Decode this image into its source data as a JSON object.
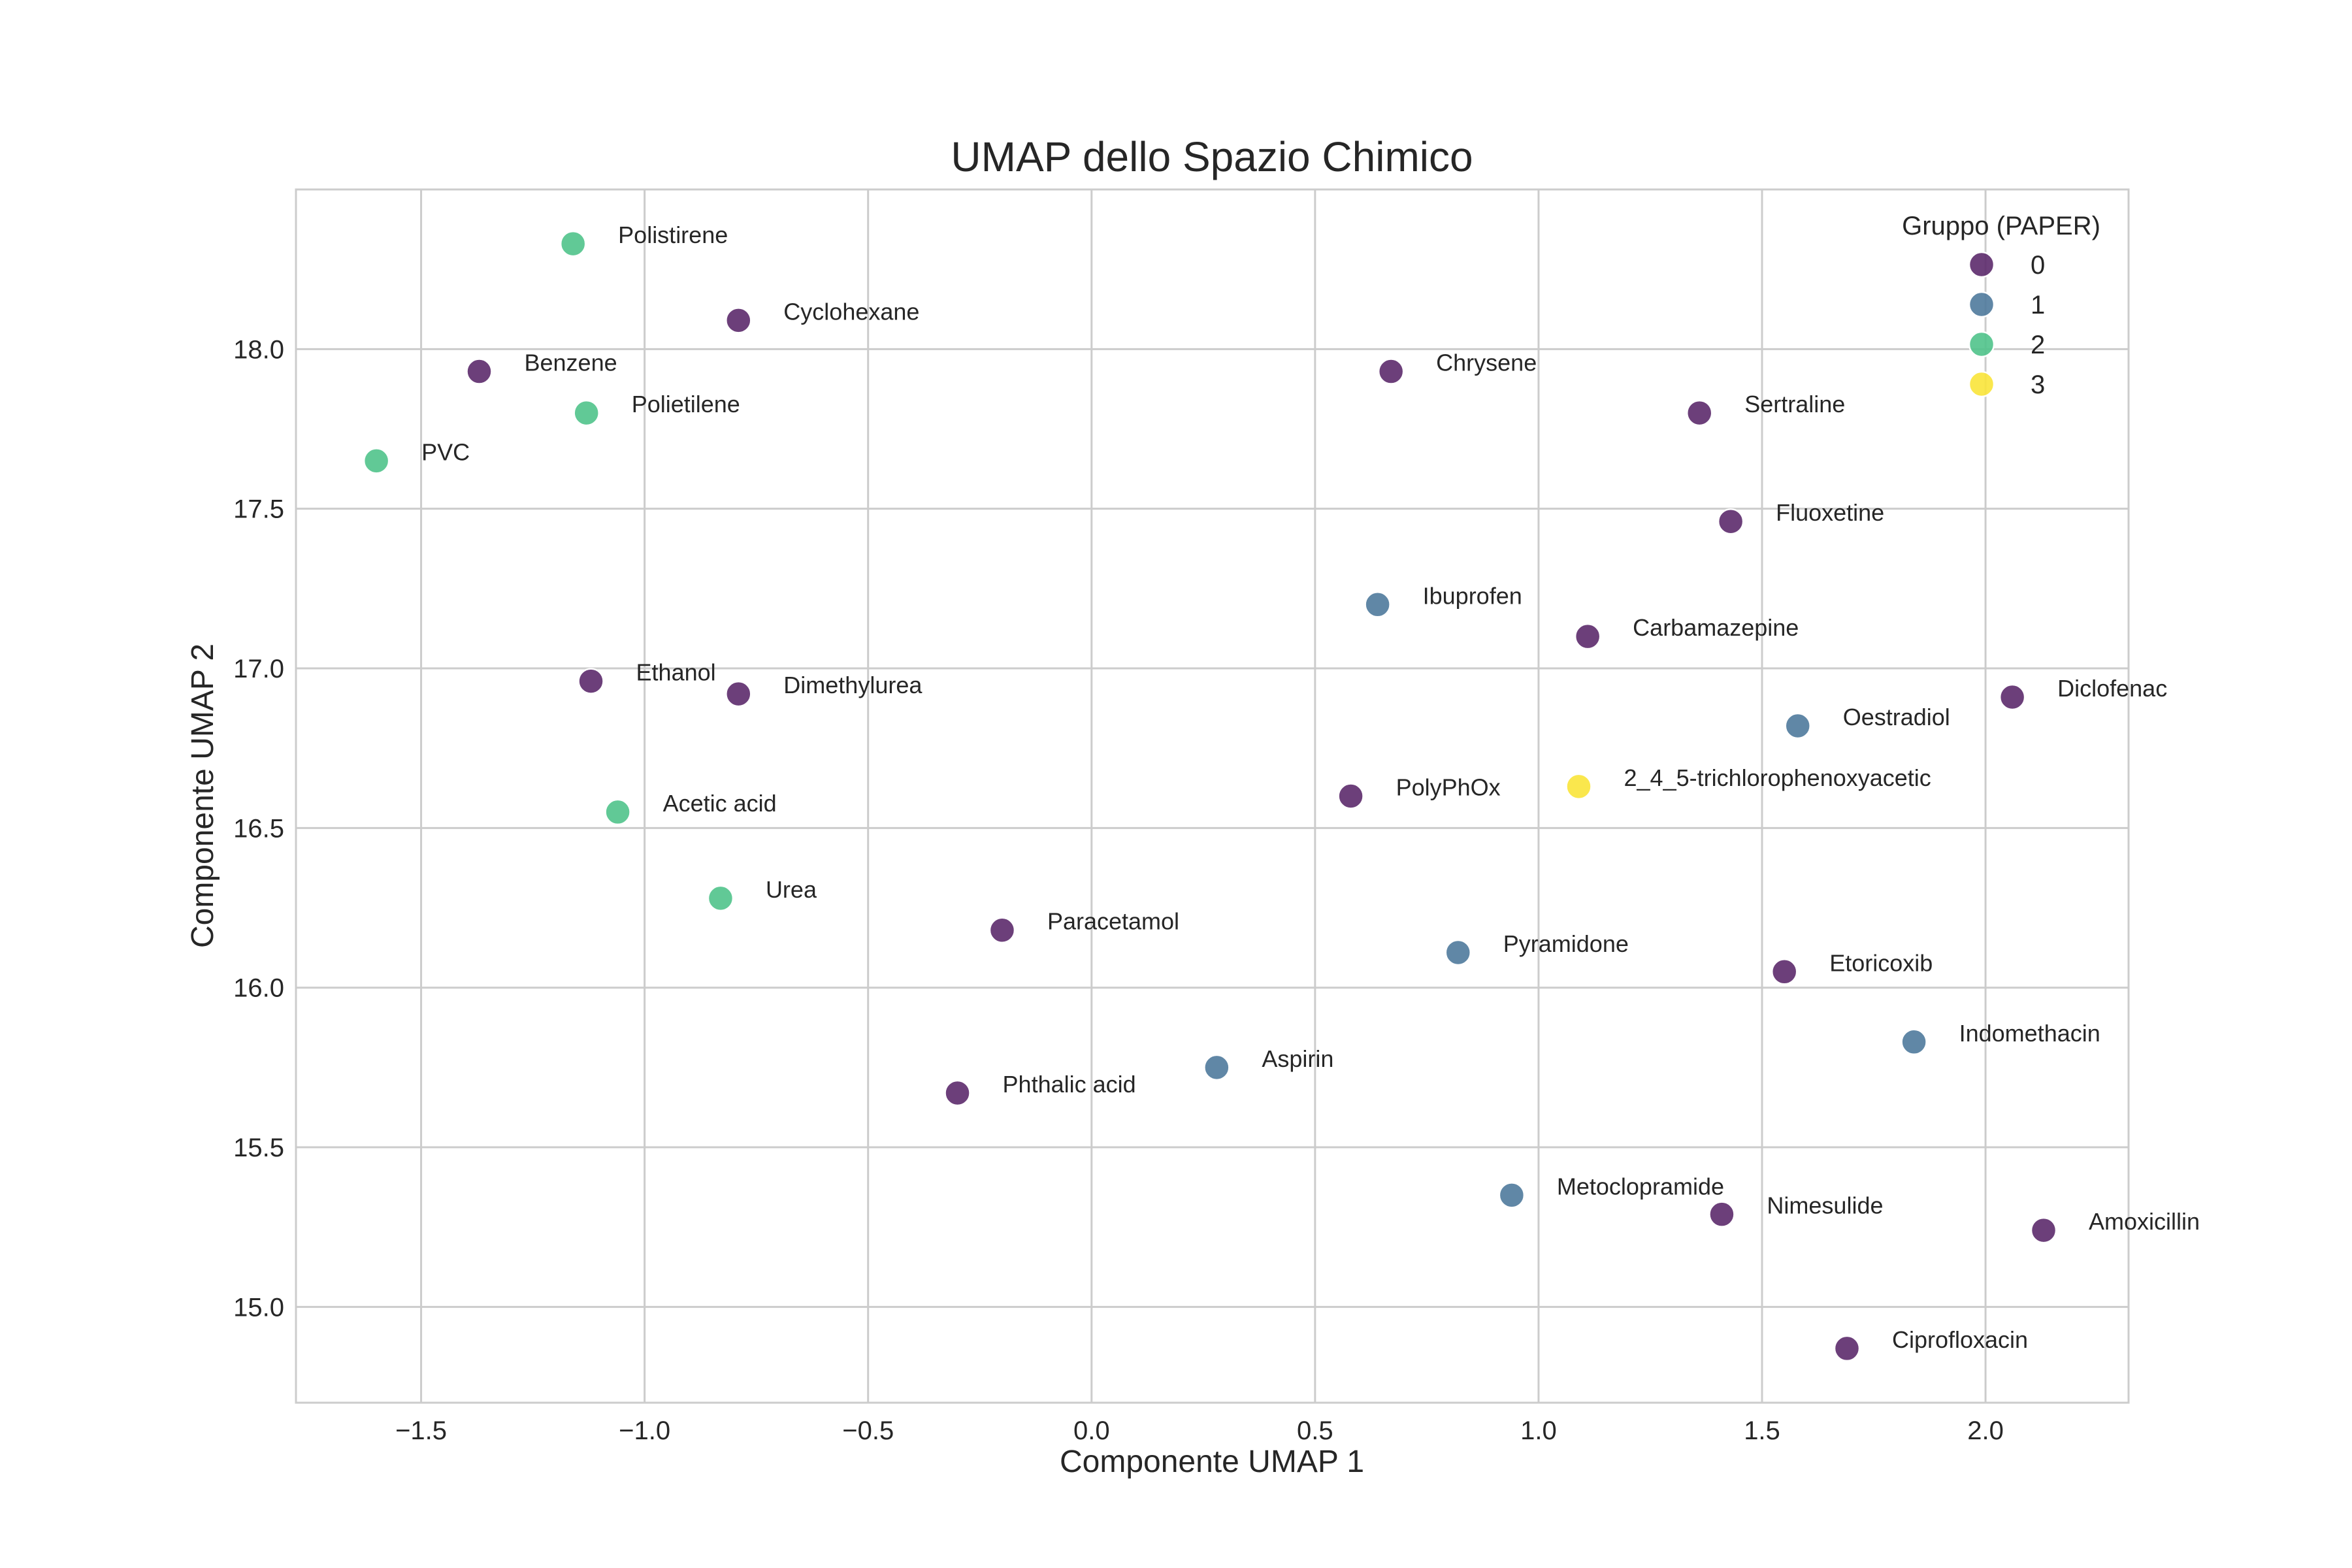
{
  "chart_data": {
    "type": "scatter",
    "title": "UMAP dello Spazio Chimico",
    "xlabel": "Componente UMAP 1",
    "ylabel": "Componente UMAP 2",
    "xlim": [
      -1.78,
      2.32
    ],
    "ylim": [
      14.7,
      18.5
    ],
    "xticks": [
      -1.5,
      -1.0,
      -0.5,
      0.0,
      0.5,
      1.0,
      1.5,
      2.0
    ],
    "xtick_labels": [
      "−1.5",
      "−1.0",
      "−0.5",
      "0.0",
      "0.5",
      "1.0",
      "1.5",
      "2.0"
    ],
    "yticks": [
      15.0,
      15.5,
      16.0,
      16.5,
      17.0,
      17.5,
      18.0
    ],
    "ytick_labels": [
      "15.0",
      "15.5",
      "16.0",
      "16.5",
      "17.0",
      "17.5",
      "18.0"
    ],
    "grid": true,
    "legend": {
      "title": "Gruppo (PAPER)",
      "placement": "top-right",
      "entries": [
        {
          "label": "0",
          "color": "#5c2a6c"
        },
        {
          "label": "1",
          "color": "#4f7a9c"
        },
        {
          "label": "2",
          "color": "#50c38b"
        },
        {
          "label": "3",
          "color": "#f9e43a"
        }
      ]
    },
    "points": [
      {
        "label": "Polistirene",
        "x": -1.16,
        "y": 18.33,
        "group": 2
      },
      {
        "label": "Cyclohexane",
        "x": -0.79,
        "y": 18.09,
        "group": 0
      },
      {
        "label": "Benzene",
        "x": -1.37,
        "y": 17.93,
        "group": 0
      },
      {
        "label": "Polietilene",
        "x": -1.13,
        "y": 17.8,
        "group": 2
      },
      {
        "label": "PVC",
        "x": -1.6,
        "y": 17.65,
        "group": 2
      },
      {
        "label": "Chrysene",
        "x": 0.67,
        "y": 17.93,
        "group": 0
      },
      {
        "label": "Sertraline",
        "x": 1.36,
        "y": 17.8,
        "group": 0
      },
      {
        "label": "Fluoxetine",
        "x": 1.43,
        "y": 17.46,
        "group": 0
      },
      {
        "label": "Ibuprofen",
        "x": 0.64,
        "y": 17.2,
        "group": 1
      },
      {
        "label": "Carbamazepine",
        "x": 1.11,
        "y": 17.1,
        "group": 0
      },
      {
        "label": "Ethanol",
        "x": -1.12,
        "y": 16.96,
        "group": 0
      },
      {
        "label": "Dimethylurea",
        "x": -0.79,
        "y": 16.92,
        "group": 0
      },
      {
        "label": "Diclofenac",
        "x": 2.06,
        "y": 16.91,
        "group": 0
      },
      {
        "label": "Oestradiol",
        "x": 1.58,
        "y": 16.82,
        "group": 1
      },
      {
        "label": "2_4_5-trichlorophenoxyacetic",
        "x": 1.09,
        "y": 16.63,
        "group": 3
      },
      {
        "label": "PolyPhOx",
        "x": 0.58,
        "y": 16.6,
        "group": 0
      },
      {
        "label": "Acetic acid",
        "x": -1.06,
        "y": 16.55,
        "group": 2
      },
      {
        "label": "Urea",
        "x": -0.83,
        "y": 16.28,
        "group": 2
      },
      {
        "label": "Paracetamol",
        "x": -0.2,
        "y": 16.18,
        "group": 0
      },
      {
        "label": "Pyramidone",
        "x": 0.82,
        "y": 16.11,
        "group": 1
      },
      {
        "label": "Etoricoxib",
        "x": 1.55,
        "y": 16.05,
        "group": 0
      },
      {
        "label": "Indomethacin",
        "x": 1.84,
        "y": 15.83,
        "group": 1
      },
      {
        "label": "Aspirin",
        "x": 0.28,
        "y": 15.75,
        "group": 1
      },
      {
        "label": "Phthalic acid",
        "x": -0.3,
        "y": 15.67,
        "group": 0
      },
      {
        "label": "Metoclopramide",
        "x": 0.94,
        "y": 15.35,
        "group": 1
      },
      {
        "label": "Nimesulide",
        "x": 1.41,
        "y": 15.29,
        "group": 0
      },
      {
        "label": "Amoxicillin",
        "x": 2.13,
        "y": 15.24,
        "group": 0
      },
      {
        "label": "Ciprofloxacin",
        "x": 1.69,
        "y": 14.87,
        "group": 0
      }
    ]
  }
}
